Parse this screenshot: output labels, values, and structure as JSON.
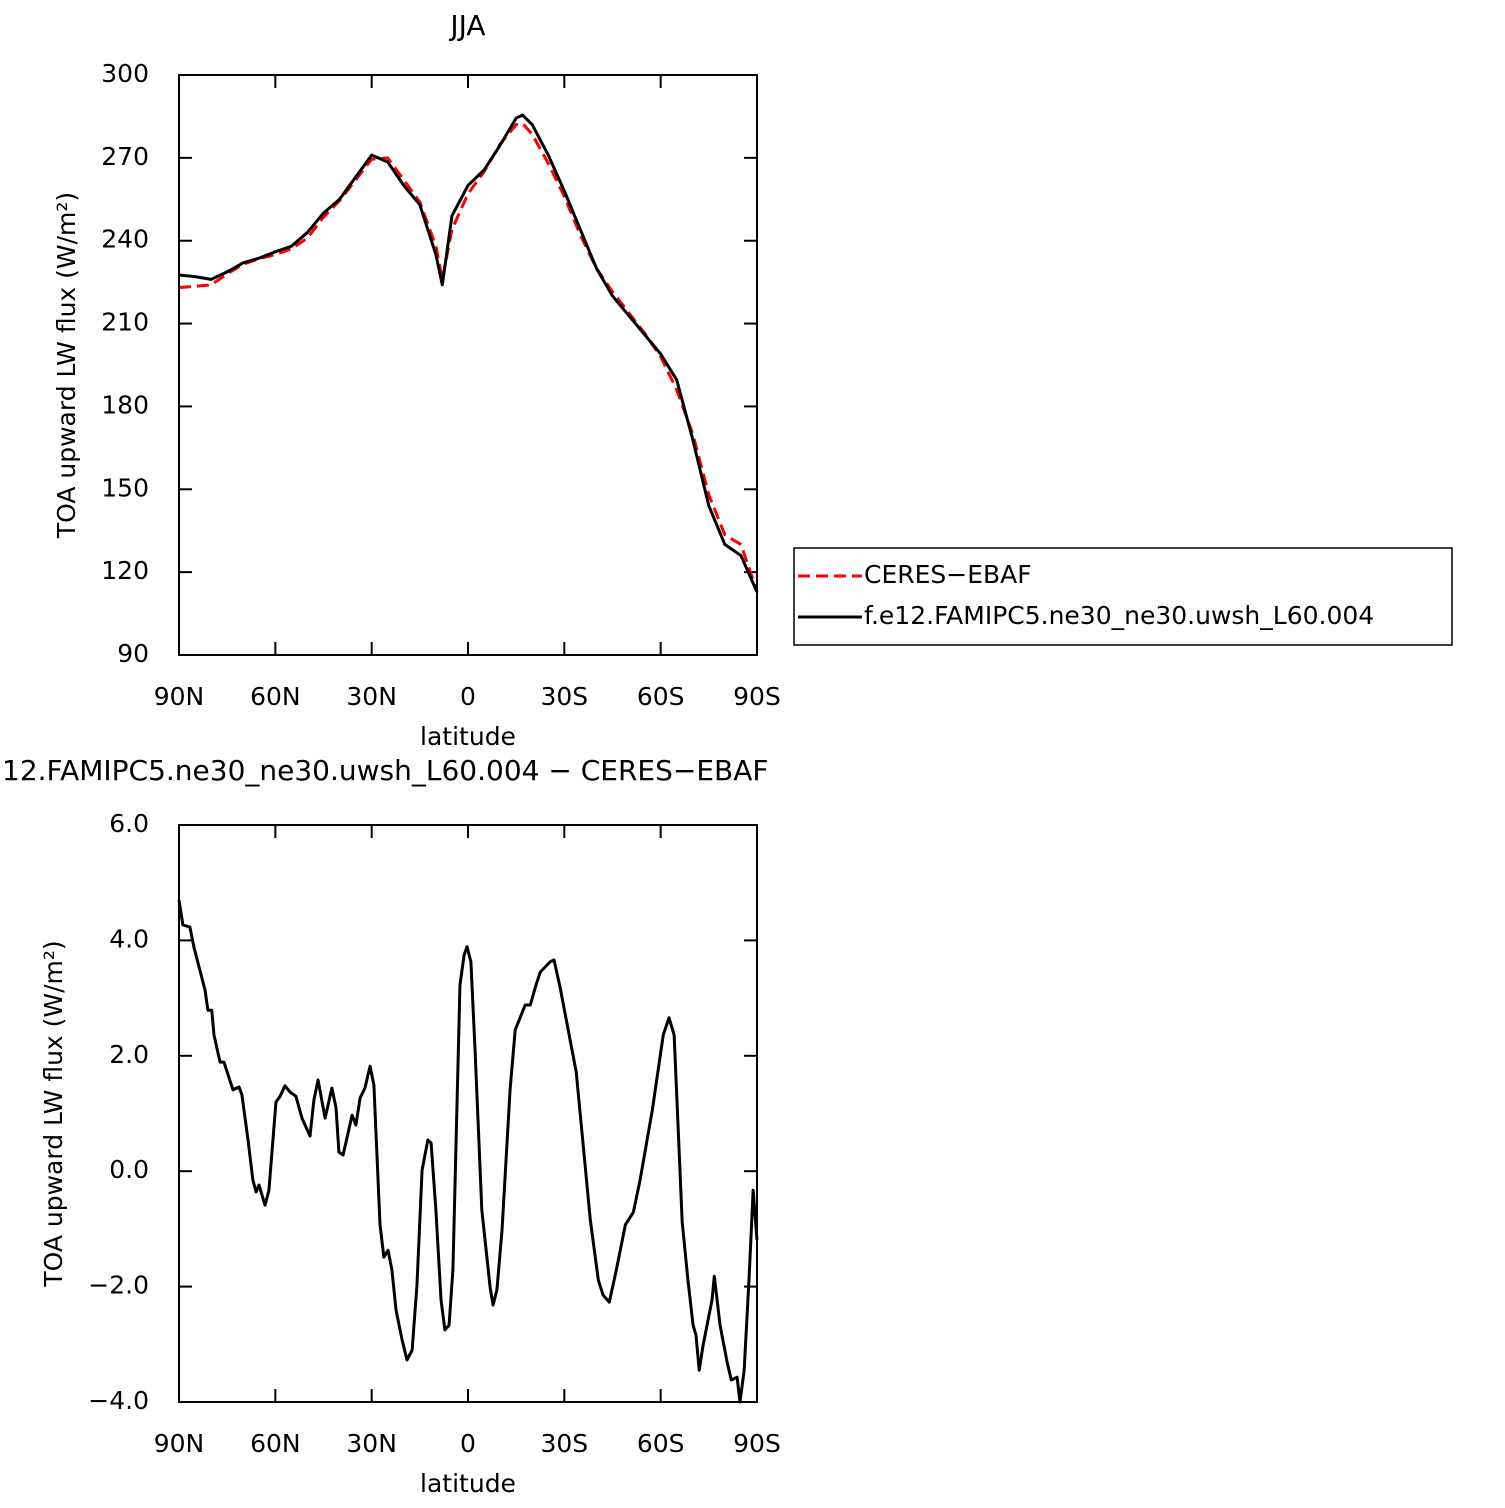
{
  "chart_data": [
    {
      "type": "line",
      "title": "JJA",
      "xlabel": "latitude",
      "ylabel": "TOA upward LW flux (W/m²)",
      "x": [
        90,
        85,
        80,
        75,
        70,
        65,
        60,
        55,
        50,
        45,
        40,
        35,
        30,
        25,
        20,
        15,
        10,
        8,
        5,
        0,
        -5,
        -10,
        -15,
        -17,
        -20,
        -25,
        -30,
        -35,
        -40,
        -45,
        -50,
        -55,
        -60,
        -65,
        -70,
        -75,
        -80,
        -85,
        -90
      ],
      "series": [
        {
          "name": "CERES−EBAF",
          "color": "#ff0000",
          "dashed": true,
          "values": [
            223,
            223.5,
            224,
            228,
            231.5,
            233.5,
            235,
            237,
            241,
            248.5,
            254.5,
            262,
            269.5,
            270,
            262,
            254,
            238,
            226,
            244,
            257,
            265,
            275,
            282,
            282.5,
            278.5,
            268,
            256,
            242,
            230,
            221.5,
            214,
            206.5,
            198,
            186,
            170,
            148,
            133.5,
            130,
            113
          ]
        },
        {
          "name": "f.e12.FAMIPC5.ne30_ne30.uwsh_L60.004",
          "color": "#000000",
          "dashed": false,
          "values": [
            227.6,
            227,
            226,
            228.7,
            232,
            233.7,
            236,
            238,
            243,
            250,
            255,
            263,
            271,
            268.5,
            260,
            253,
            235,
            224,
            249,
            260,
            265.6,
            274.6,
            284.4,
            285.5,
            282,
            271,
            258,
            244,
            230,
            220,
            213,
            206,
            199,
            189.6,
            168,
            144,
            130,
            126,
            112.8
          ]
        }
      ],
      "xlim": [
        90,
        -90
      ],
      "xticks": [
        {
          "value": 90,
          "label": "90N"
        },
        {
          "value": 60,
          "label": "60N"
        },
        {
          "value": 30,
          "label": "30N"
        },
        0,
        {
          "value": -30,
          "label": "30S"
        },
        {
          "value": -60,
          "label": "60S"
        },
        {
          "value": -90,
          "label": "90S"
        }
      ],
      "ylim": [
        90,
        300
      ],
      "yticks": [
        90,
        120,
        150,
        180,
        210,
        240,
        270,
        300
      ],
      "legend": "outside right"
    },
    {
      "type": "line",
      "title": "12.FAMIPC5.ne30_ne30.uwsh_L60.004 − CERES−EBAF",
      "xlabel": "latitude",
      "ylabel": "TOA upward LW flux (W/m²)",
      "color": "#000000",
      "x": [
        90,
        88.8,
        86.6,
        85.3,
        81.9,
        81,
        79.8,
        79.1,
        77.2,
        76,
        73.2,
        71.3,
        70.4,
        68.5,
        67,
        66,
        65.1,
        63.2,
        62,
        59.8,
        58.5,
        57,
        55.4,
        53.6,
        51.7,
        49.2,
        48,
        46.7,
        44.5,
        42.4,
        41.1,
        40.2,
        38.9,
        36.1,
        34.9,
        33.6,
        32.1,
        30.5,
        29.3,
        27.4,
        26.2,
        24.9,
        23.7,
        22.4,
        20.5,
        19,
        17.4,
        15.9,
        14.3,
        12.5,
        11.5,
        10,
        8.4,
        7.2,
        5.9,
        4.7,
        2.5,
        1.2,
        0.3,
        -0.9,
        -2.2,
        -4.3,
        -6.9,
        -7.8,
        -9,
        -10.6,
        -13.1,
        -14.7,
        -16.6,
        -17.8,
        -19.4,
        -21.2,
        -22.5,
        -25.6,
        -26.8,
        -28.7,
        -31.2,
        -33.7,
        -38.1,
        -40.6,
        -42.1,
        -44,
        -46.2,
        -49,
        -51.5,
        -53.6,
        -57.4,
        -60.8,
        -62.6,
        -64.2,
        -66.7,
        -68.5,
        -70.1,
        -71,
        -72,
        -73.2,
        -76,
        -76.7,
        -78.5,
        -80.7,
        -82,
        -83.8,
        -84.7,
        -86,
        -87.5,
        -88.8,
        -90
      ],
      "values": [
        4.7,
        4.27,
        4.23,
        3.87,
        3.14,
        2.79,
        2.79,
        2.36,
        1.89,
        1.89,
        1.41,
        1.46,
        1.32,
        0.54,
        -0.15,
        -0.36,
        -0.24,
        -0.59,
        -0.33,
        1.2,
        1.3,
        1.48,
        1.37,
        1.3,
        0.92,
        0.61,
        1.23,
        1.58,
        0.92,
        1.44,
        1.1,
        0.33,
        0.28,
        0.97,
        0.8,
        1.27,
        1.44,
        1.82,
        1.49,
        -0.93,
        -1.49,
        -1.37,
        -1.71,
        -2.41,
        -2.93,
        -3.27,
        -3.1,
        -1.98,
        0.02,
        0.54,
        0.49,
        -0.67,
        -2.23,
        -2.75,
        -2.67,
        -1.71,
        3.23,
        3.75,
        3.89,
        3.63,
        2.1,
        -0.67,
        -2.02,
        -2.32,
        -2.06,
        -1.02,
        1.41,
        2.45,
        2.71,
        2.88,
        2.88,
        3.23,
        3.45,
        3.63,
        3.66,
        3.18,
        2.45,
        1.72,
        -0.85,
        -1.89,
        -2.15,
        -2.27,
        -1.71,
        -0.93,
        -0.71,
        -0.15,
        1.06,
        2.36,
        2.66,
        2.36,
        -0.88,
        -1.89,
        -2.67,
        -2.84,
        -3.45,
        -3.02,
        -2.23,
        -1.82,
        -2.67,
        -3.31,
        -3.62,
        -3.57,
        -4.0,
        -3.45,
        -1.89,
        -0.33,
        -1.19
      ],
      "xlim": [
        90,
        -90
      ],
      "xticks": [
        {
          "value": 90,
          "label": "90N"
        },
        {
          "value": 60,
          "label": "60N"
        },
        {
          "value": 30,
          "label": "30N"
        },
        0,
        {
          "value": -30,
          "label": "30S"
        },
        {
          "value": -60,
          "label": "60S"
        },
        {
          "value": -90,
          "label": "90S"
        }
      ],
      "ylim": [
        -4,
        6
      ],
      "yticks": [
        {
          "value": -4,
          "label": "−4.0"
        },
        {
          "value": -2,
          "label": "−2.0"
        },
        {
          "value": 0,
          "label": "0.0"
        },
        {
          "value": 2,
          "label": "2.0"
        },
        {
          "value": 4,
          "label": "4.0"
        },
        {
          "value": 6,
          "label": "6.0"
        }
      ]
    }
  ]
}
